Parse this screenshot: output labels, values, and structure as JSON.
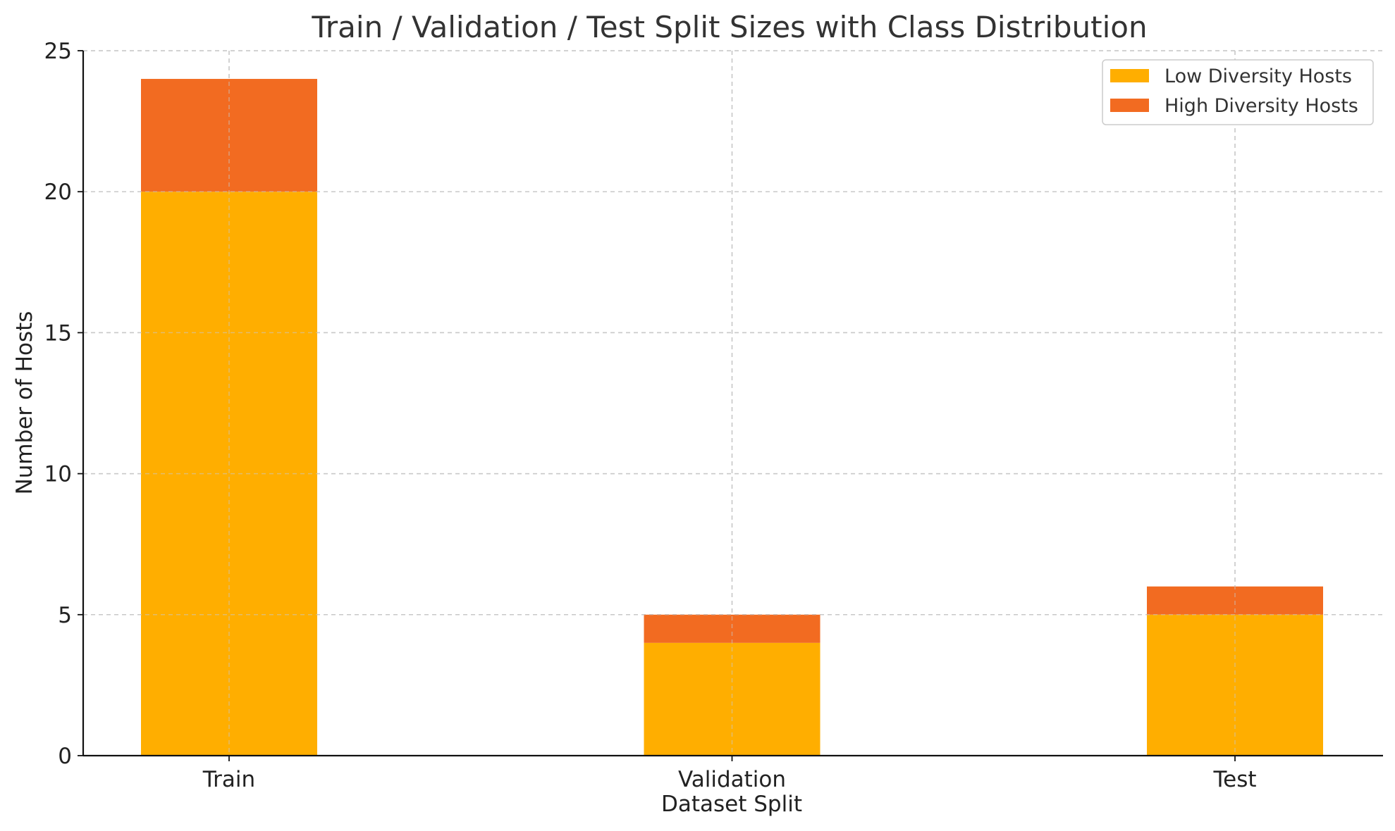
{
  "chart_data": {
    "type": "bar",
    "stacked": true,
    "title": "Train / Validation / Test Split Sizes with Class Distribution",
    "xlabel": "Dataset Split",
    "ylabel": "Number of Hosts",
    "categories": [
      "Train",
      "Validation",
      "Test"
    ],
    "series": [
      {
        "name": "Low Diversity Hosts",
        "values": [
          20,
          4,
          5
        ],
        "color": "#FFAE00"
      },
      {
        "name": "High Diversity Hosts",
        "values": [
          4,
          1,
          1
        ],
        "color": "#F26B21"
      }
    ],
    "ylim": [
      0,
      25
    ],
    "yticks": [
      0,
      5,
      10,
      15,
      20,
      25
    ],
    "grid": true,
    "legend_position": "top-right"
  }
}
